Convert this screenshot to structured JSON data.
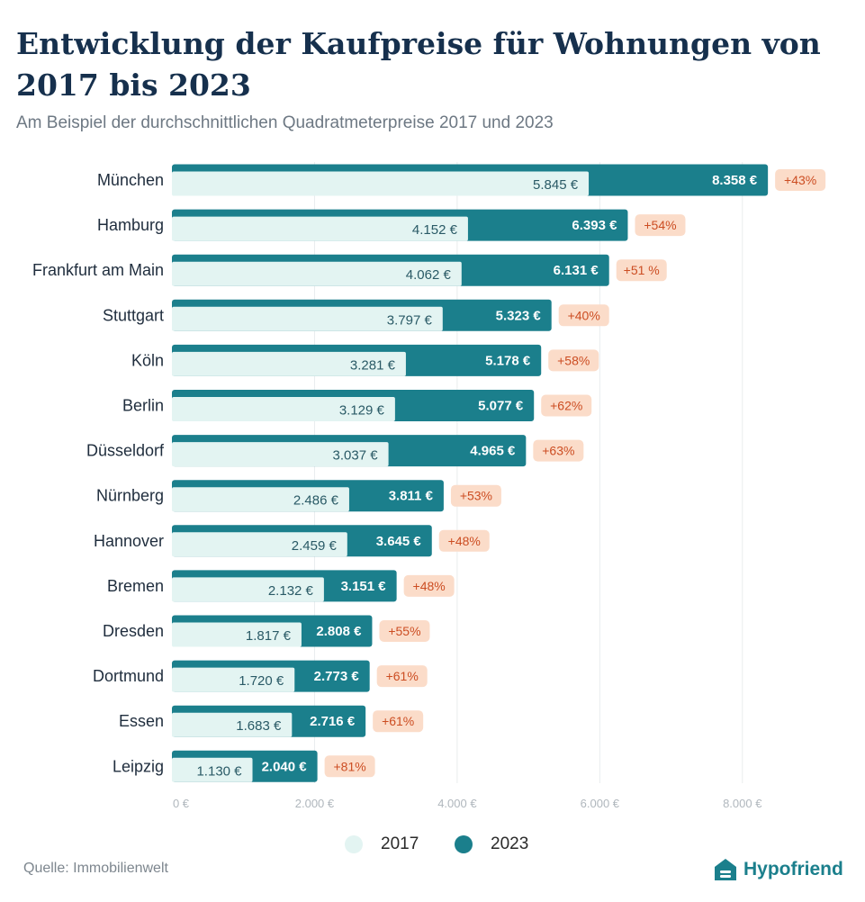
{
  "title": "Entwicklung der Kaufpreise für Wohnungen von 2017 bis 2023",
  "subtitle": "Am Beispiel der durchschnittlichen Quadratmeterpreise 2017 und 2023",
  "source": "Quelle: Immobilienwelt",
  "brand": "Hypofriend",
  "colors": {
    "bar2017": "#e3f4f2",
    "bar2023": "#1b7f8c",
    "label2017": "#2a5a66",
    "label2023": "#ffffff",
    "badgeBg": "#fbdcc9",
    "badgeText": "#cc4d22",
    "axisText": "#b0b7bd",
    "grid": "#e9ecee",
    "brandIcon": "#1b7f8c"
  },
  "chart_data": {
    "type": "bar",
    "orientation": "horizontal",
    "title": "Entwicklung der Kaufpreise für Wohnungen von 2017 bis 2023",
    "xlabel": "",
    "ylabel": "",
    "xlim": [
      0,
      9000
    ],
    "ticks": [
      0,
      2000,
      4000,
      6000,
      8000
    ],
    "tick_labels": [
      "0 €",
      "2.000 €",
      "4.000 €",
      "6.000 €",
      "8.000 €"
    ],
    "categories": [
      "München",
      "Hamburg",
      "Frankfurt am Main",
      "Stuttgart",
      "Köln",
      "Berlin",
      "Düsseldorf",
      "Nürnberg",
      "Hannover",
      "Bremen",
      "Dresden",
      "Dortmund",
      "Essen",
      "Leipzig"
    ],
    "series": [
      {
        "name": "2017",
        "values": [
          5845,
          4152,
          4062,
          3797,
          3281,
          3129,
          3037,
          2486,
          2459,
          2132,
          1817,
          1720,
          1683,
          1130
        ],
        "labels": [
          "5.845 €",
          "4.152 €",
          "4.062 €",
          "3.797 €",
          "3.281 €",
          "3.129 €",
          "3.037 €",
          "2.486 €",
          "2.459 €",
          "2.132 €",
          "1.817 €",
          "1.720 €",
          "1.683 €",
          "1.130 €"
        ]
      },
      {
        "name": "2023",
        "values": [
          8358,
          6393,
          6131,
          5323,
          5178,
          5077,
          4965,
          3811,
          3645,
          3151,
          2808,
          2773,
          2716,
          2040
        ],
        "labels": [
          "8.358 €",
          "6.393 €",
          "6.131 €",
          "5.323 €",
          "5.178 €",
          "5.077 €",
          "4.965 €",
          "3.811 €",
          "3.645 €",
          "3.151 €",
          "2.808 €",
          "2.773 €",
          "2.716 €",
          "2.040 €"
        ]
      }
    ],
    "change_labels": [
      "+43%",
      "+54%",
      "+51 %",
      "+40%",
      "+58%",
      "+62%",
      "+63%",
      "+53%",
      "+48%",
      "+48%",
      "+55%",
      "+61%",
      "+61%",
      "+81%"
    ],
    "legend": [
      "2017",
      "2023"
    ],
    "legend_position": "bottom"
  }
}
